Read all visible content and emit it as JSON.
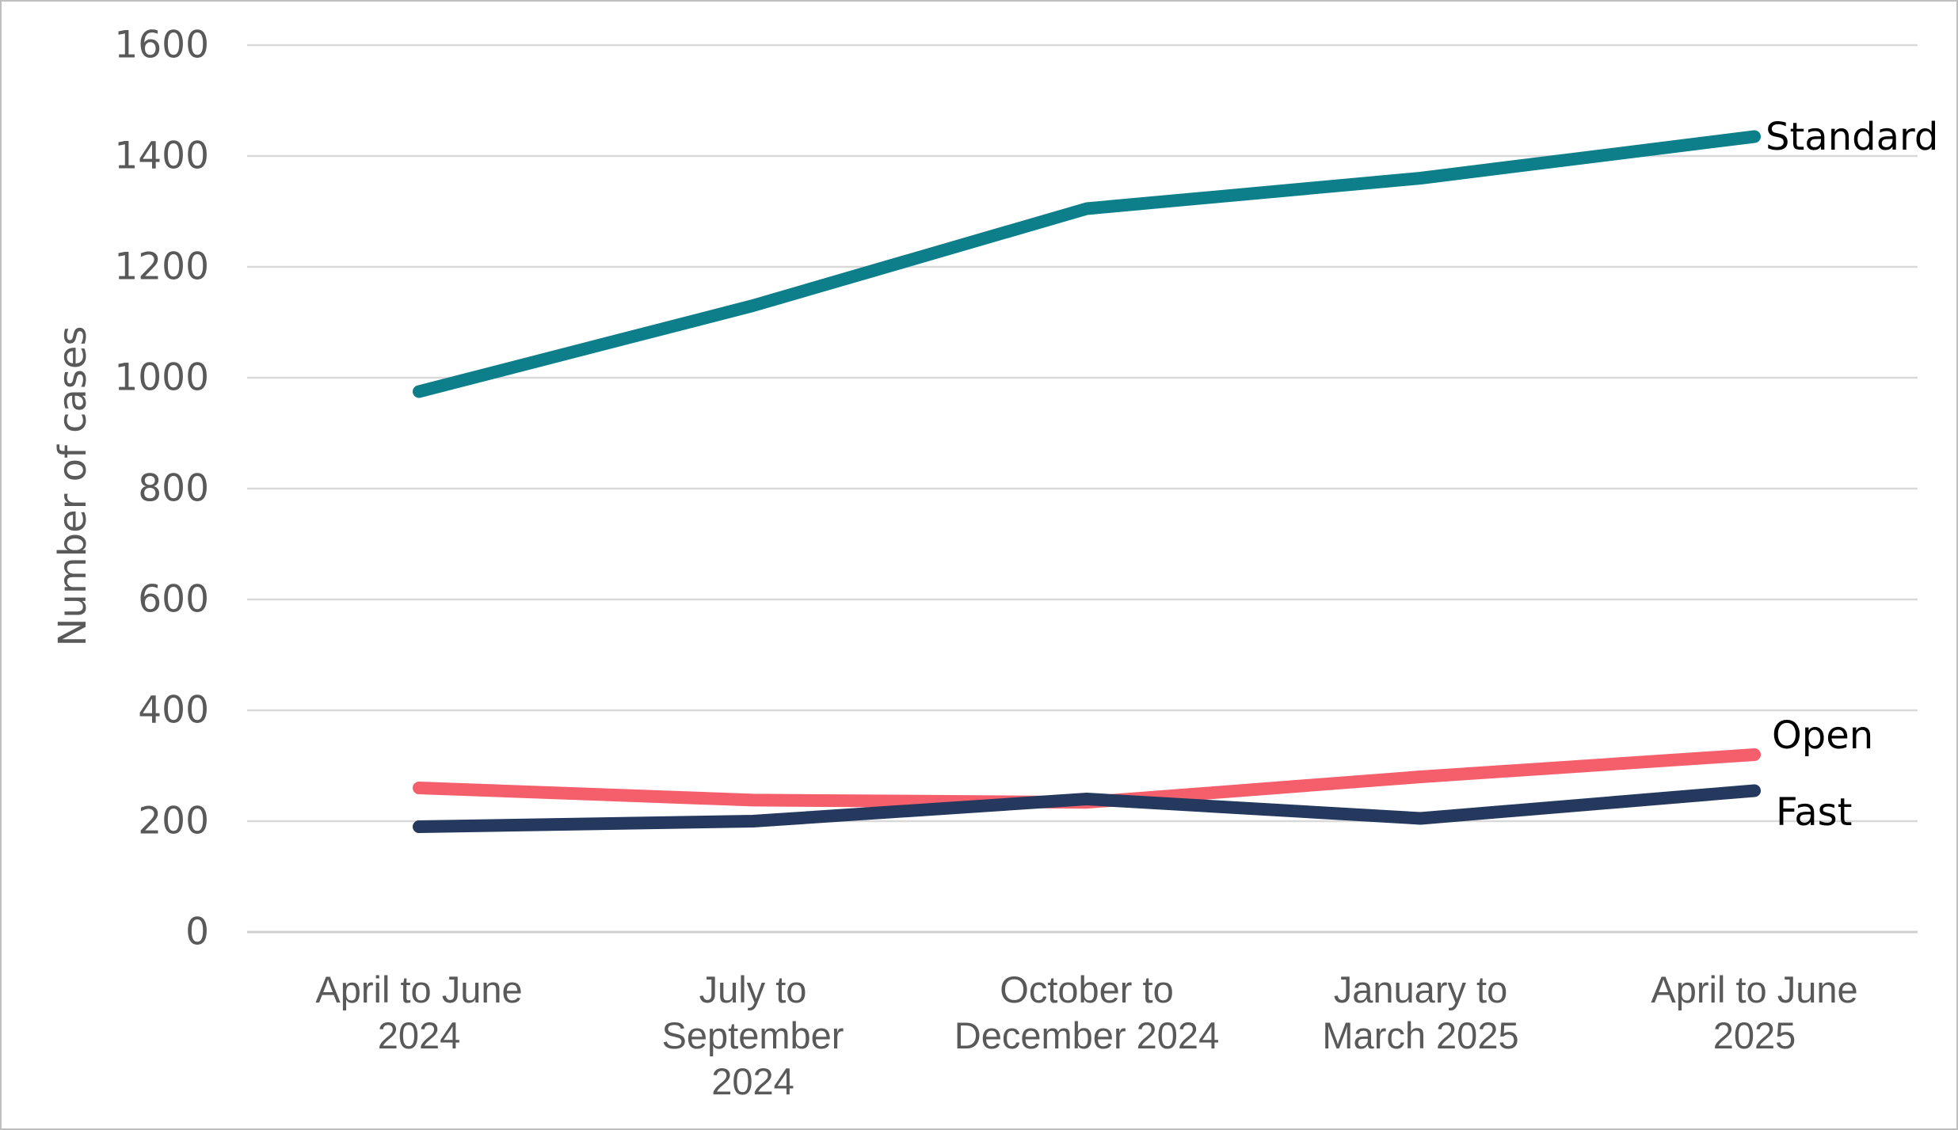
{
  "figure": {
    "background": "#FFFFFF",
    "border_color": "#BFBFBF"
  },
  "chart_data": {
    "type": "line",
    "title": "",
    "xlabel": "",
    "ylabel": "Number of cases",
    "ylim": [
      0,
      1600
    ],
    "y_tick_step": 200,
    "y_ticks": [
      "0",
      "200",
      "400",
      "600",
      "800",
      "1000",
      "1200",
      "1400",
      "1600"
    ],
    "grid": "horizontal",
    "grid_color": "#D9D9D9",
    "baseline_color": "#D0D0D0",
    "legend": "direct labels at right ends of lines",
    "categories": [
      "April to June 2024",
      "July to September 2024",
      "October to December 2024",
      "January to March 2025",
      "April to June 2025"
    ],
    "x_tick_lines": [
      [
        "April to June",
        "2024"
      ],
      [
        "July to",
        "September",
        "2024"
      ],
      [
        "October to",
        "December 2024"
      ],
      [
        "January to",
        "March 2025"
      ],
      [
        "April to June",
        "2025"
      ]
    ],
    "series": [
      {
        "name": "Standard",
        "color": "#0D7F8B",
        "values": [
          975,
          1130,
          1305,
          1360,
          1435
        ],
        "label_dx": 14,
        "label_dy": 0
      },
      {
        "name": "Open",
        "color": "#F45F6B",
        "values": [
          260,
          238,
          234,
          280,
          320
        ],
        "label_dx": 22,
        "label_dy": -24
      },
      {
        "name": "Fast",
        "color": "#25395E",
        "values": [
          190,
          200,
          240,
          205,
          255
        ],
        "label_dx": 27,
        "label_dy": 27
      }
    ],
    "text_colors": {
      "tick_labels": "#595959",
      "axis_title": "#595959",
      "series_labels": "#000000"
    }
  }
}
